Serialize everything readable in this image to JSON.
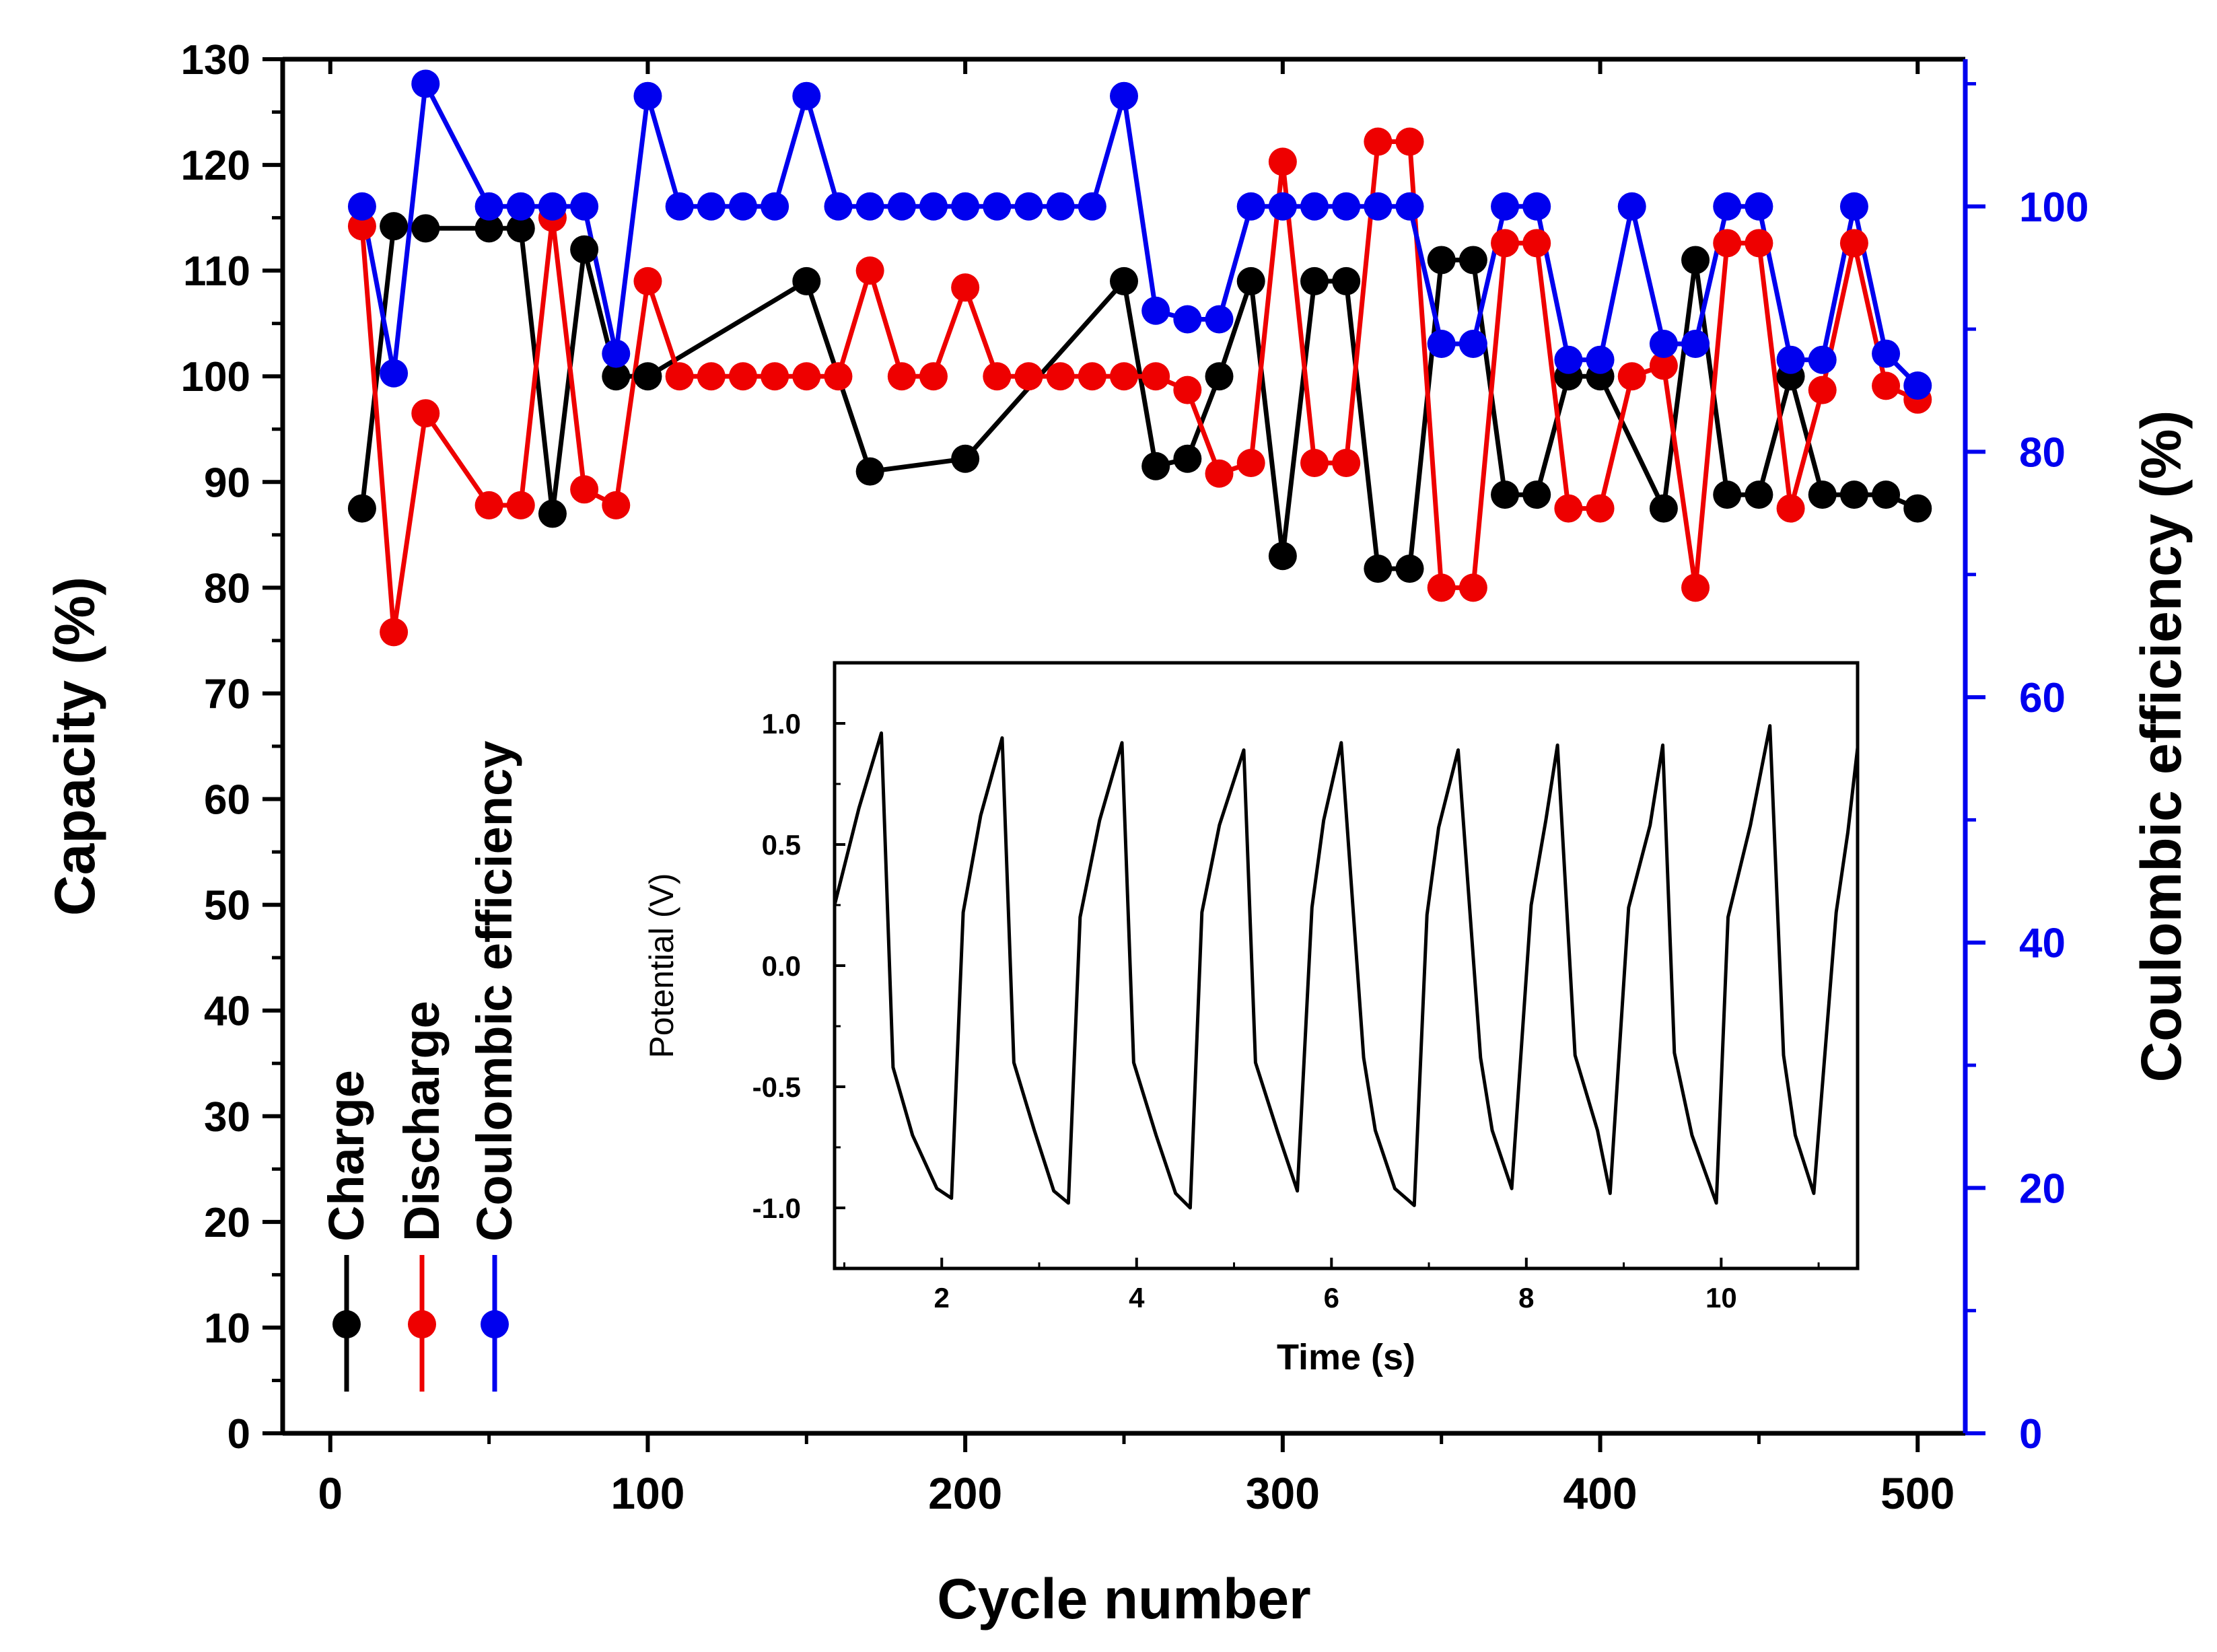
{
  "chart_data": [
    {
      "type": "scatter",
      "title": "",
      "xlabel": "Cycle number",
      "ylabel": "Capacity (%)",
      "y2label": "Coulombic efficiency (%)",
      "xlim": [
        -15,
        515
      ],
      "ylim": [
        0,
        130
      ],
      "y2lim": [
        0,
        112
      ],
      "xticks": [
        0,
        100,
        200,
        300,
        400,
        500
      ],
      "yticks": [
        0,
        10,
        20,
        30,
        40,
        50,
        60,
        70,
        80,
        90,
        100,
        110,
        120,
        130
      ],
      "y2ticks": [
        0,
        20,
        40,
        60,
        80,
        100
      ],
      "legend_position": "lower-left (vertical labels)",
      "colors": {
        "Charge": "#000000",
        "Discharge": "#ee0000",
        "Coulombic efficiency": "#0000ee",
        "axis2": "#0000ee"
      },
      "series": [
        {
          "name": "Charge",
          "axis": "left",
          "x": [
            10,
            20,
            30,
            50,
            60,
            70,
            80,
            90,
            100,
            150,
            170,
            200,
            250,
            260,
            270,
            280,
            290,
            300,
            310,
            320,
            330,
            340,
            350,
            360,
            370,
            380,
            390,
            400,
            420,
            430,
            440,
            450,
            460,
            470,
            480,
            490,
            500
          ],
          "values": [
            87.5,
            114.2,
            114,
            114,
            114,
            87,
            112,
            100,
            100,
            109,
            91,
            92.2,
            109,
            91.5,
            92.2,
            100,
            109,
            83,
            109,
            109,
            81.8,
            81.8,
            111,
            111,
            88.8,
            88.8,
            100,
            100,
            87.5,
            111,
            88.8,
            88.8,
            100,
            88.8,
            88.8,
            88.8,
            87.5
          ]
        },
        {
          "name": "Discharge",
          "axis": "left",
          "x": [
            10,
            20,
            30,
            50,
            60,
            70,
            80,
            90,
            100,
            110,
            120,
            130,
            140,
            150,
            160,
            170,
            180,
            190,
            200,
            210,
            220,
            230,
            240,
            250,
            260,
            270,
            280,
            290,
            300,
            310,
            320,
            330,
            340,
            350,
            360,
            370,
            380,
            390,
            400,
            410,
            420,
            430,
            440,
            450,
            460,
            470,
            480,
            490,
            500
          ],
          "values": [
            114.2,
            75.8,
            96.5,
            87.8,
            87.8,
            115,
            89.3,
            87.8,
            109,
            100,
            100,
            100,
            100,
            100,
            100,
            110,
            100,
            100,
            108.4,
            100,
            100,
            100,
            100,
            100,
            100,
            98.7,
            90.8,
            91.8,
            120.3,
            91.8,
            91.8,
            122.2,
            122.2,
            80,
            80,
            112.6,
            112.6,
            87.5,
            87.5,
            100,
            101,
            80,
            112.6,
            112.6,
            87.5,
            98.7,
            112.6,
            99.1,
            97.8
          ]
        },
        {
          "name": "Coulombic efficiency",
          "axis": "right",
          "x": [
            10,
            20,
            30,
            50,
            60,
            70,
            80,
            90,
            100,
            110,
            120,
            130,
            140,
            150,
            160,
            170,
            180,
            190,
            200,
            210,
            220,
            230,
            240,
            250,
            260,
            270,
            280,
            290,
            300,
            310,
            320,
            330,
            340,
            350,
            360,
            370,
            380,
            390,
            400,
            410,
            420,
            430,
            440,
            450,
            460,
            470,
            480,
            490,
            500
          ],
          "values": [
            100,
            86.4,
            110,
            100,
            100,
            100,
            100,
            88,
            109,
            100,
            100,
            100,
            100,
            109,
            100,
            100,
            100,
            100,
            100,
            100,
            100,
            100,
            100,
            109,
            91.5,
            90.8,
            90.8,
            100,
            100,
            100,
            100,
            100,
            100,
            88.8,
            88.8,
            100,
            100,
            87.5,
            87.5,
            100,
            88.8,
            88.8,
            100,
            100,
            87.5,
            87.5,
            100,
            88,
            85.4
          ]
        }
      ]
    },
    {
      "type": "line",
      "title": "",
      "name": "inset",
      "xlabel": "Time (s)",
      "ylabel": "Potential (V)",
      "xlim": [
        0.9,
        11.4
      ],
      "ylim": [
        -1.25,
        1.25
      ],
      "xticks": [
        2,
        4,
        6,
        8,
        10
      ],
      "yticks": [
        -1.0,
        -0.5,
        0.0,
        0.5,
        1.0
      ],
      "ytick_labels": [
        "-1.0",
        "-0.5",
        "0.0",
        "0.5",
        "1.0"
      ],
      "series": [
        {
          "name": "Potential",
          "x": [
            0.9,
            1.15,
            1.38,
            1.5,
            1.7,
            1.95,
            2.1,
            2.22,
            2.4,
            2.62,
            2.74,
            2.95,
            3.15,
            3.3,
            3.42,
            3.62,
            3.85,
            3.97,
            4.2,
            4.4,
            4.55,
            4.67,
            4.85,
            5.1,
            5.22,
            5.45,
            5.65,
            5.8,
            5.92,
            6.1,
            6.33,
            6.45,
            6.65,
            6.85,
            6.98,
            7.1,
            7.3,
            7.53,
            7.65,
            7.85,
            8.05,
            8.2,
            8.32,
            8.5,
            8.73,
            8.86,
            9.05,
            9.27,
            9.4,
            9.52,
            9.7,
            9.95,
            10.07,
            10.3,
            10.5,
            10.64,
            10.76,
            10.95,
            11.18,
            11.3,
            11.4
          ],
          "values": [
            0.25,
            0.65,
            0.96,
            -0.42,
            -0.7,
            -0.92,
            -0.96,
            0.22,
            0.62,
            0.94,
            -0.4,
            -0.68,
            -0.93,
            -0.98,
            0.2,
            0.6,
            0.92,
            -0.4,
            -0.7,
            -0.94,
            -1.0,
            0.22,
            0.58,
            0.89,
            -0.4,
            -0.69,
            -0.93,
            0.24,
            0.6,
            0.92,
            -0.38,
            -0.68,
            -0.92,
            -0.99,
            0.21,
            0.57,
            0.89,
            -0.38,
            -0.68,
            -0.92,
            0.25,
            0.6,
            0.91,
            -0.37,
            -0.68,
            -0.94,
            0.24,
            0.58,
            0.91,
            -0.36,
            -0.7,
            -0.98,
            0.2,
            0.58,
            0.99,
            -0.37,
            -0.7,
            -0.94,
            0.22,
            0.55,
            0.9
          ]
        }
      ]
    }
  ]
}
